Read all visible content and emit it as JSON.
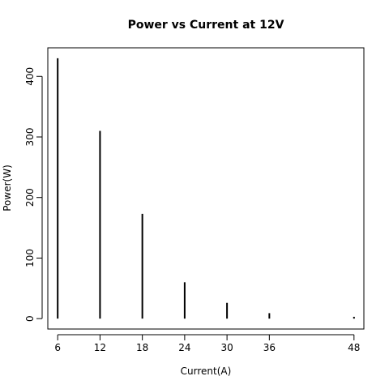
{
  "chart_data": {
    "type": "bar",
    "title": "Power vs Current at 12V",
    "xlabel": "Current(A)",
    "ylabel": "Power(W)",
    "x": [
      6,
      12,
      18,
      24,
      30,
      36,
      48
    ],
    "values": [
      430,
      310,
      173,
      60,
      26,
      9,
      3
    ],
    "x_ticks": [
      "6",
      "12",
      "18",
      "24",
      "30",
      "36",
      "48"
    ],
    "y_ticks": [
      "0",
      "100",
      "200",
      "300",
      "400"
    ],
    "xlim": [
      4.6,
      49.4
    ],
    "ylim": [
      -17.2,
      447.2
    ],
    "grid": false,
    "legend": "none",
    "colors": {
      "line": "#000000",
      "frame": "#000000"
    }
  }
}
